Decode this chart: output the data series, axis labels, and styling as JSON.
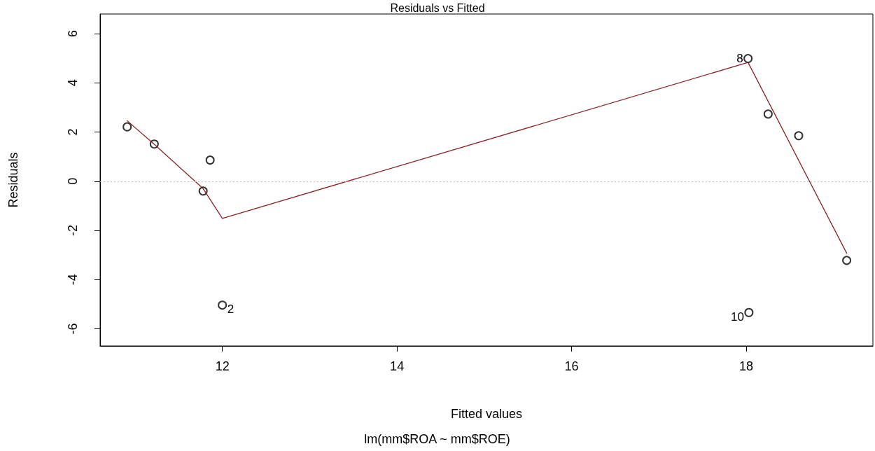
{
  "chart_data": {
    "type": "scatter",
    "title": "Residuals vs Fitted",
    "xlabel": "Fitted values",
    "ylabel": "Residuals",
    "annotations": [
      {
        "text": "8",
        "x": 18.02,
        "y": 4.99
      },
      {
        "text": "2",
        "x": 12.0,
        "y": -5.04
      },
      {
        "text": "10",
        "x": 18.03,
        "y": -5.34
      },
      "lm(mm$ROA ~ mm$ROE)"
    ],
    "series": [
      {
        "color": "#000000",
        "marker": "circle",
        "x": [
          10.91,
          11.22,
          11.78,
          11.86,
          12.0,
          18.02,
          18.03,
          18.25,
          18.6,
          19.15
        ],
        "values": [
          2.21,
          1.51,
          -0.4,
          0.86,
          -5.04,
          4.99,
          -5.34,
          2.73,
          1.85,
          -3.22
        ]
      },
      {
        "type": "line",
        "color": "#8b2323",
        "marker": "none",
        "line_style": "solid",
        "x": [
          10.91,
          11.22,
          11.78,
          12.0,
          18.02,
          19.15
        ],
        "values": [
          2.46,
          1.5,
          -0.3,
          -1.51,
          4.83,
          -2.93
        ]
      }
    ],
    "xlim": [
      10.6,
      19.45
    ],
    "ylim": [
      -6.7,
      6.8
    ],
    "xticks": [
      12,
      14,
      16,
      18
    ],
    "yticks": [
      -6,
      -4,
      -2,
      0,
      2,
      4,
      6
    ],
    "ref_lines": [
      {
        "axis": "y",
        "value": 0,
        "color": "#bebebe",
        "line_style": "dotted"
      }
    ],
    "grid": false
  }
}
